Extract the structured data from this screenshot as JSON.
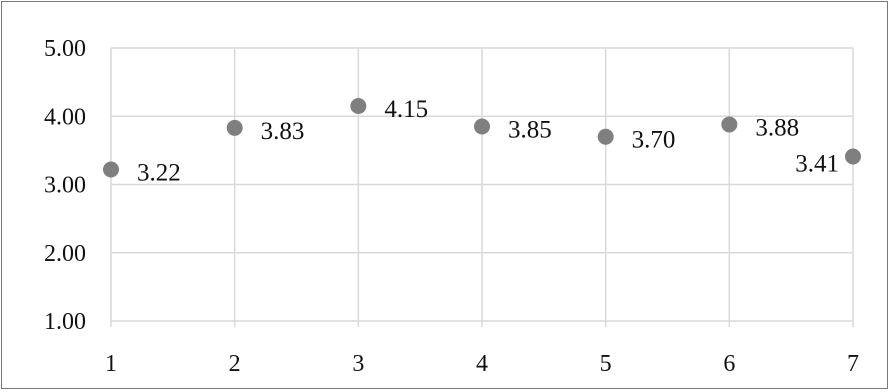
{
  "chart_data": {
    "type": "scatter",
    "x": [
      1,
      2,
      3,
      4,
      5,
      6,
      7
    ],
    "values": [
      3.22,
      3.83,
      4.15,
      3.85,
      3.7,
      3.88,
      3.41
    ],
    "data_labels": [
      "3.22",
      "3.83",
      "4.15",
      "3.85",
      "3.70",
      "3.88",
      "3.41"
    ],
    "x_tick_labels": [
      "1",
      "2",
      "3",
      "4",
      "5",
      "6",
      "7"
    ],
    "y_tick_values": [
      1,
      2,
      3,
      4,
      5
    ],
    "y_tick_labels": [
      "1.00",
      "2.00",
      "3.00",
      "4.00",
      "5.00"
    ],
    "xlim": [
      1,
      7
    ],
    "ylim": [
      1,
      5
    ],
    "grid": true,
    "title": "",
    "xlabel": "",
    "ylabel": "",
    "marker_color": "#7f7f7f",
    "grid_color": "#d9d9d9"
  }
}
